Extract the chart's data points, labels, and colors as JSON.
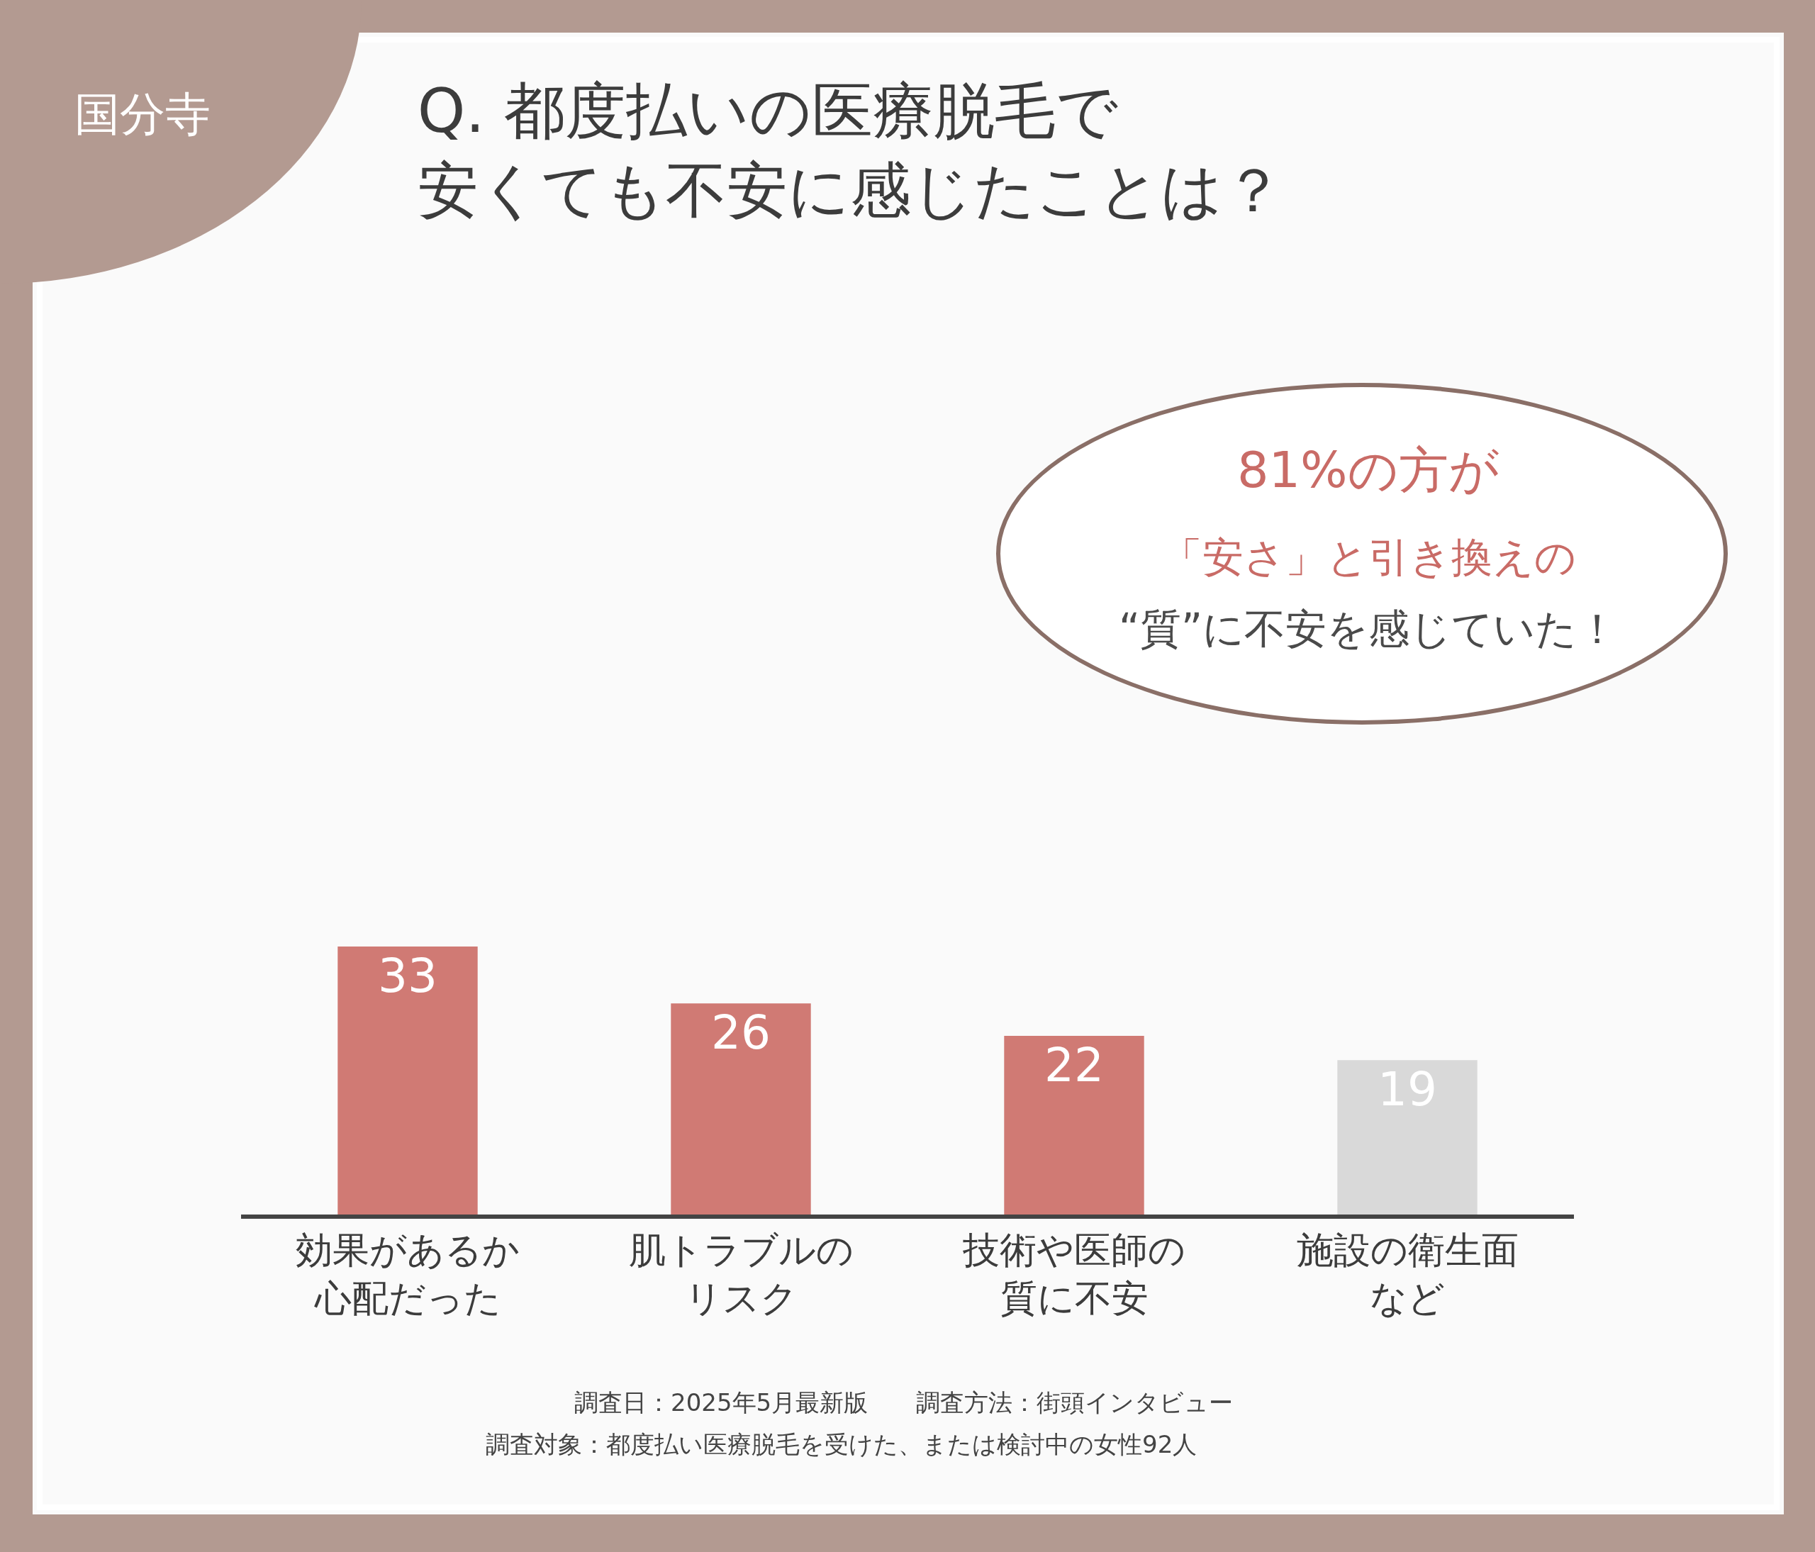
{
  "chart_data": {
    "type": "bar",
    "title": "Q. 都度払いの医療脱毛で安くても不安に感じたことは？",
    "categories": [
      "効果があるか心配だった",
      "肌トラブルのリスク",
      "技術や医師の質に不安",
      "施設の衛生面など"
    ],
    "values": [
      33,
      26,
      22,
      19
    ],
    "colors": [
      "#d07a74",
      "#d07a74",
      "#d07a74",
      "#d9d9d9"
    ],
    "data_labels": true,
    "annotations": [
      "国分寺",
      "81%の方が",
      "「安さ」と引き換えの",
      "“質”に不安を感じていた！",
      "調査日：2025年5月最新版　　調査方法：街頭インタビュー",
      "調査対象：都度払い医療脱毛を受けた、または検討中の女性92人"
    ]
  }
}
